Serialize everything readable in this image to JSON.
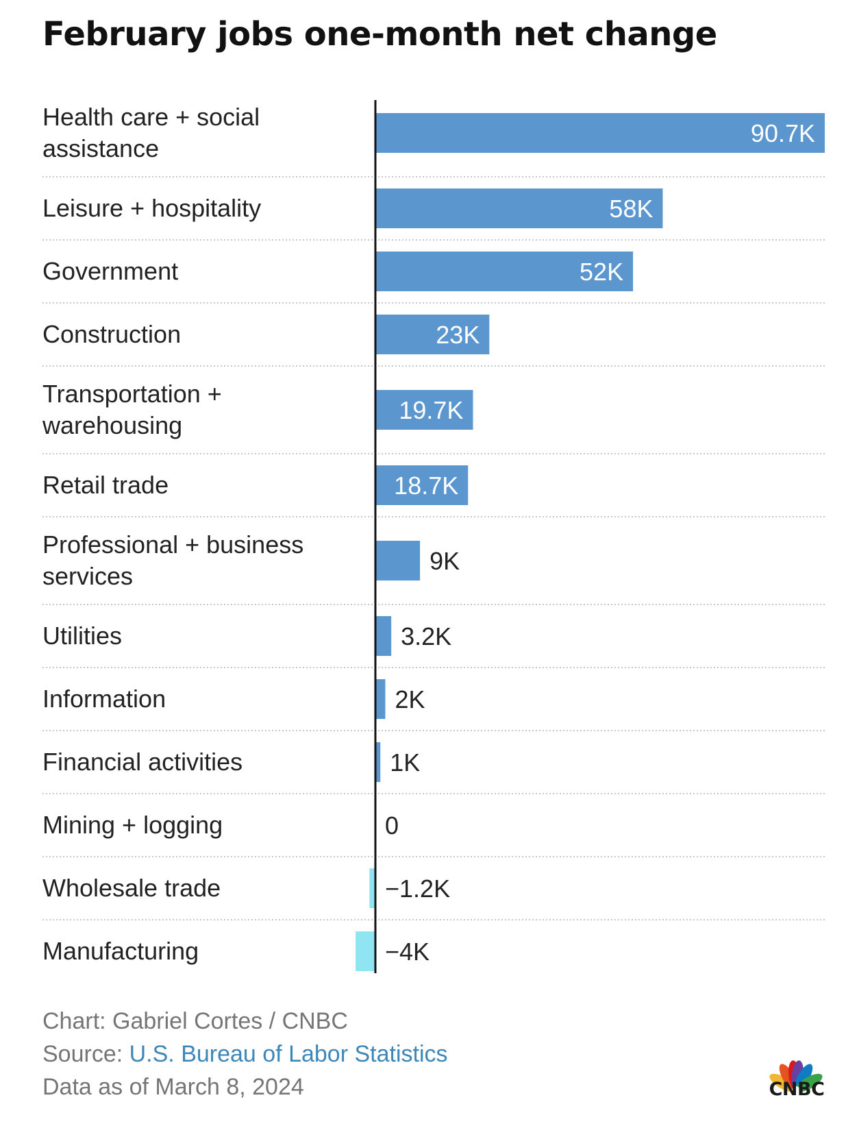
{
  "title": "February jobs one-month net change",
  "colors": {
    "positive_bar": "#5b96cf",
    "negative_bar": "#8fe6f2",
    "axis": "#111111",
    "separator": "#c8c8c8",
    "label_text": "#222222",
    "footer_text": "#757575",
    "link_text": "#3d87b8"
  },
  "chart_data": {
    "type": "bar",
    "orientation": "horizontal",
    "unit": "thousand jobs",
    "xlim": [
      -5,
      90.7
    ],
    "grid": false,
    "legend": "none",
    "categories": [
      [
        "Health care + social",
        "assistance"
      ],
      [
        "Leisure + hospitality"
      ],
      [
        "Government"
      ],
      [
        "Construction"
      ],
      [
        "Transportation +",
        "warehousing"
      ],
      [
        "Retail trade"
      ],
      [
        "Professional + business",
        "services"
      ],
      [
        "Utilities"
      ],
      [
        "Information"
      ],
      [
        "Financial activities"
      ],
      [
        "Mining + logging"
      ],
      [
        "Wholesale trade"
      ],
      [
        "Manufacturing"
      ]
    ],
    "values": [
      90.7,
      58,
      52,
      23,
      19.7,
      18.7,
      9,
      3.2,
      2,
      1,
      0,
      -1.2,
      -4
    ],
    "value_labels": [
      "90.7K",
      "58K",
      "52K",
      "23K",
      "19.7K",
      "18.7K",
      "9K",
      "3.2K",
      "2K",
      "1K",
      "0",
      "−1.2K",
      "−4K"
    ]
  },
  "footer": {
    "credit": "Chart: Gabriel Cortes / CNBC",
    "source_prefix": "Source: ",
    "source_link": "U.S. Bureau of Labor Statistics",
    "date": "Data as of March 8, 2024"
  },
  "logo": {
    "text": "CNBC",
    "icon": "peacock-icon",
    "feather_colors": [
      "#f2b632",
      "#e5531f",
      "#d71920",
      "#6b3fa0",
      "#0f7bc4",
      "#3aa34a"
    ]
  }
}
